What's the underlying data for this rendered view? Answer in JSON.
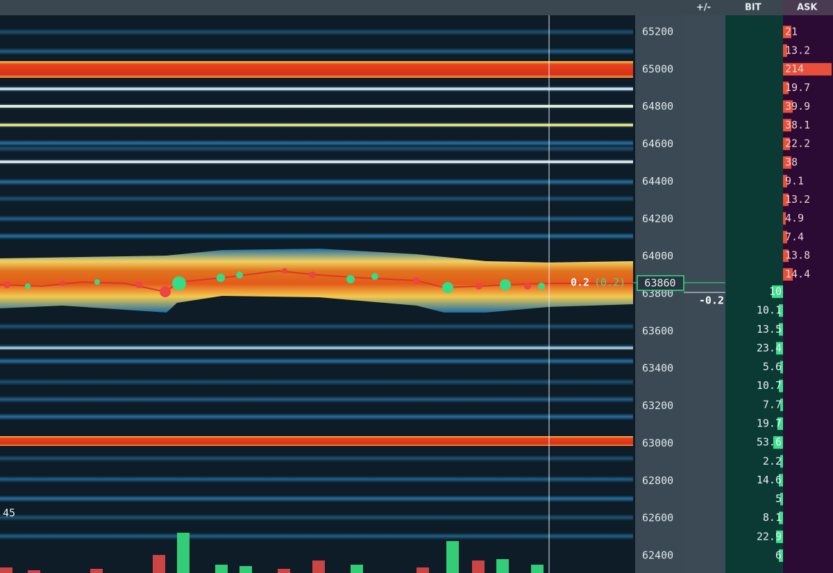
{
  "header": {
    "delta": "+/-",
    "bid": "BIT",
    "ask": "ASK"
  },
  "price_axis": {
    "labels": [
      65200,
      65000,
      64800,
      64600,
      64400,
      64200,
      64000,
      63800,
      63600,
      63400,
      63200,
      63000,
      62800,
      62600,
      62400
    ]
  },
  "last_price": 63860,
  "trade_label": {
    "size": "0.2",
    "total": "(0.2)"
  },
  "delta_value": "-0.2",
  "volume_scale": "45",
  "ask_sizes": [
    21,
    13.2,
    214,
    19.7,
    39.9,
    38.1,
    22.2,
    38,
    9.1,
    13.2,
    4.9,
    7.4,
    13.8,
    14.4
  ],
  "bid_sizes": [
    10,
    10.1,
    13.5,
    23.4,
    5.6,
    10.7,
    7.7,
    19.7,
    53.6,
    2.2,
    14.6,
    5,
    8.1,
    22.9,
    6
  ]
}
